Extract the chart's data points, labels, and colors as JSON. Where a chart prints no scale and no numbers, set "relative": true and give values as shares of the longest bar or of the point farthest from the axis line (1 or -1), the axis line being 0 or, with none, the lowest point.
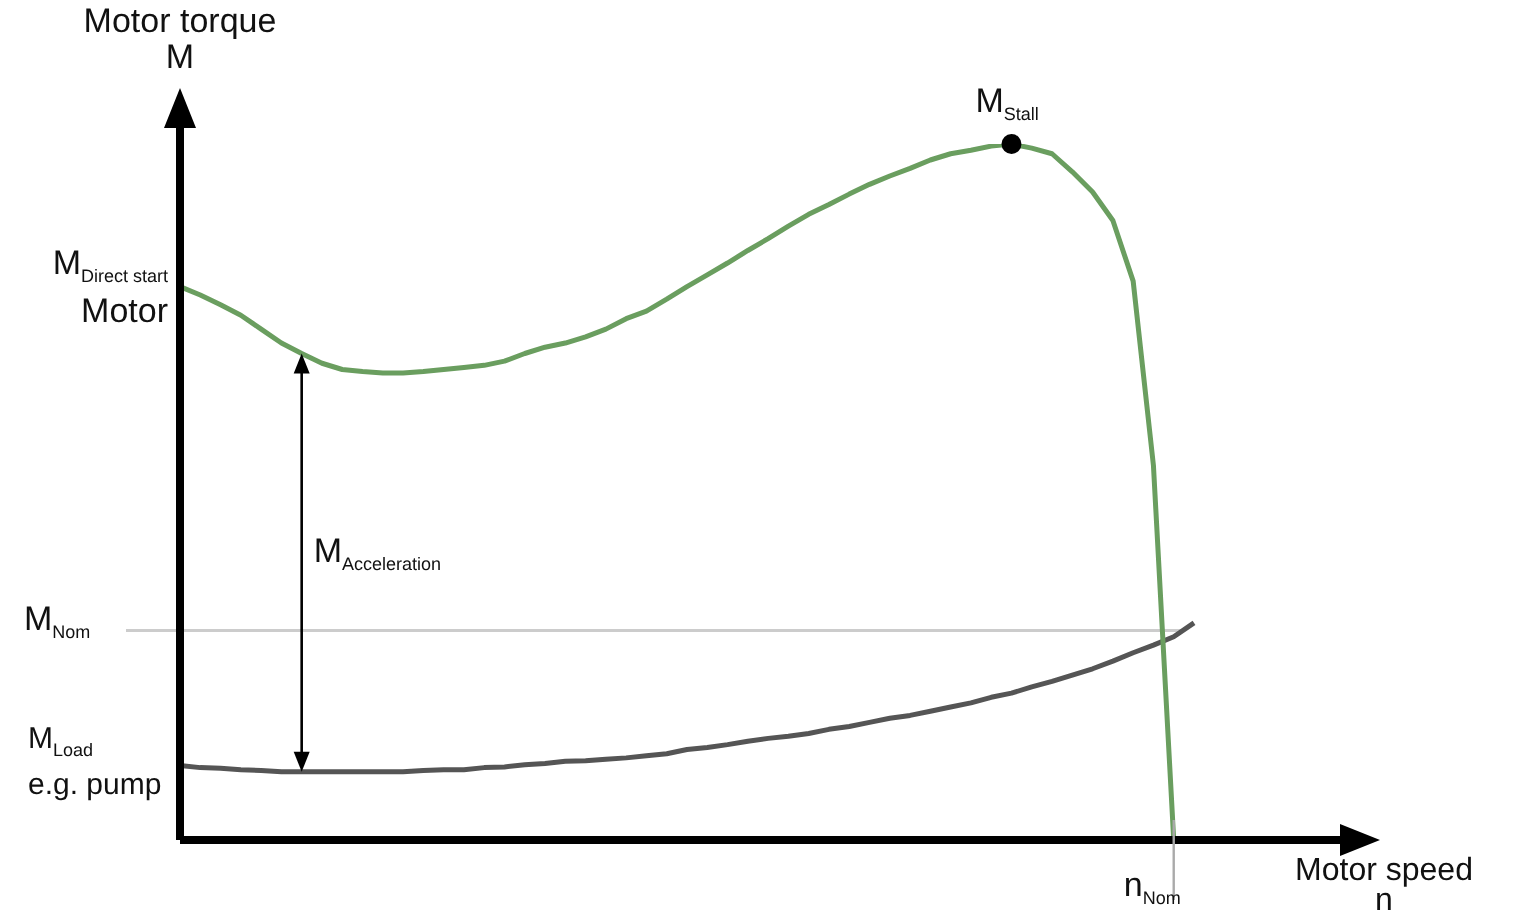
{
  "chart_data": {
    "type": "line",
    "relative": true,
    "xlabel": "Motor speed\nn",
    "ylabel": "Motor torque\nM",
    "grid": false,
    "legend": false,
    "marker": "none",
    "categories": [
      null,
      null,
      null,
      null,
      null,
      null,
      null,
      null,
      null,
      null,
      null,
      null,
      null,
      null,
      null,
      null,
      null,
      null,
      null,
      null,
      null,
      null,
      null,
      null,
      null,
      null,
      null,
      null,
      null,
      null,
      null,
      null,
      null,
      null,
      null,
      null,
      null,
      null,
      null,
      null,
      null,
      null,
      null,
      null,
      null,
      null,
      null,
      null,
      null,
      null,
      null
    ],
    "series": [
      {
        "color": "#6a9e5f",
        "values": [
          0.795,
          0.783,
          0.769,
          0.754,
          0.734,
          0.714,
          0.699,
          0.685,
          0.676,
          0.673,
          0.671,
          0.671,
          0.673,
          0.676,
          0.679,
          0.682,
          0.688,
          0.699,
          0.708,
          0.714,
          0.723,
          0.734,
          0.749,
          0.76,
          0.777,
          0.795,
          0.812,
          0.829,
          0.847,
          0.864,
          0.882,
          0.899,
          0.913,
          0.928,
          0.942,
          0.954,
          0.965,
          0.977,
          0.986,
          0.991,
          0.997,
          1,
          0.994,
          0.986,
          0.96,
          0.931,
          0.89,
          0.803,
          0.538,
          0,
          null
        ]
      },
      {
        "color": "#555555",
        "values": [
          0.107,
          0.104,
          0.103,
          0.101,
          0.1,
          0.098,
          0.098,
          0.098,
          0.098,
          0.098,
          0.098,
          0.098,
          0.1,
          0.101,
          0.101,
          0.104,
          0.105,
          0.108,
          0.11,
          0.113,
          0.114,
          0.116,
          0.118,
          0.121,
          0.124,
          0.13,
          0.133,
          0.137,
          0.142,
          0.146,
          0.149,
          0.153,
          0.159,
          0.163,
          0.169,
          0.175,
          0.179,
          0.185,
          0.191,
          0.197,
          0.205,
          0.211,
          0.22,
          0.228,
          0.237,
          0.246,
          0.257,
          0.269,
          0.28,
          0.292,
          0.312
        ]
      }
    ],
    "ref_lines": [
      {
        "axis": "y",
        "value": 0.301,
        "label": "M$_{Nom}$",
        "color": "#cccccc"
      }
    ],
    "annotations": [
      "M$_{Direct start}$\nMotor",
      "M$_{Stall}$",
      "M$_{Acceleration}$",
      "M$_{Load}$\ne.g. pump",
      "n$_{Nom}$"
    ]
  }
}
